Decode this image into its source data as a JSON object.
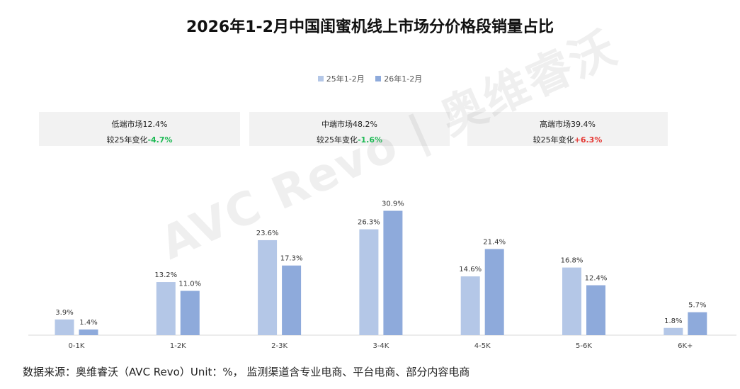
{
  "title": "2026年1-2月中国闺蜜机线上市场分价格段销量占比",
  "legend": [
    "25年1-2月",
    "26年1-2月"
  ],
  "segments": [
    {
      "name_text": "低端市场12.4%",
      "change_prefix": "较25年变化",
      "change_value": "-4.7%",
      "direction": "down"
    },
    {
      "name_text": "中端市场48.2%",
      "change_prefix": "较25年变化",
      "change_value": "-1.6%",
      "direction": "down"
    },
    {
      "name_text": "高端市场39.4%",
      "change_prefix": "较25年变化",
      "change_value": "+6.3%",
      "direction": "up"
    }
  ],
  "watermark": "AVC Revo | 奥维睿沃",
  "source": "数据来源：奥维睿沃（AVC Revo）Unit：%， 监测渠道含专业电商、平台电商、部分内容电商",
  "colors": {
    "series1": "#b4c7e7",
    "series2": "#8eaadb",
    "down": "#1db954",
    "up": "#e53935"
  },
  "chart_data": {
    "type": "bar",
    "title": "2026年1-2月中国闺蜜机线上市场分价格段销量占比",
    "categories": [
      "0-1K",
      "1-2K",
      "2-3K",
      "3-4K",
      "4-5K",
      "5-6K",
      "6K+"
    ],
    "series": [
      {
        "name": "25年1-2月",
        "values": [
          3.9,
          13.2,
          23.6,
          26.3,
          14.6,
          16.8,
          1.8
        ],
        "labels": [
          "3.9%",
          "13.2%",
          "23.6%",
          "26.3%",
          "14.6%",
          "16.8%",
          "1.8%"
        ]
      },
      {
        "name": "26年1-2月",
        "values": [
          1.4,
          11.0,
          17.3,
          30.9,
          21.4,
          12.4,
          5.7
        ],
        "labels": [
          "1.4%",
          "11.0%",
          "17.3%",
          "30.9%",
          "21.4%",
          "12.4%",
          "5.7%"
        ]
      }
    ],
    "ylim": [
      0,
      31
    ],
    "unit": "%",
    "legend_position": "top-center"
  }
}
